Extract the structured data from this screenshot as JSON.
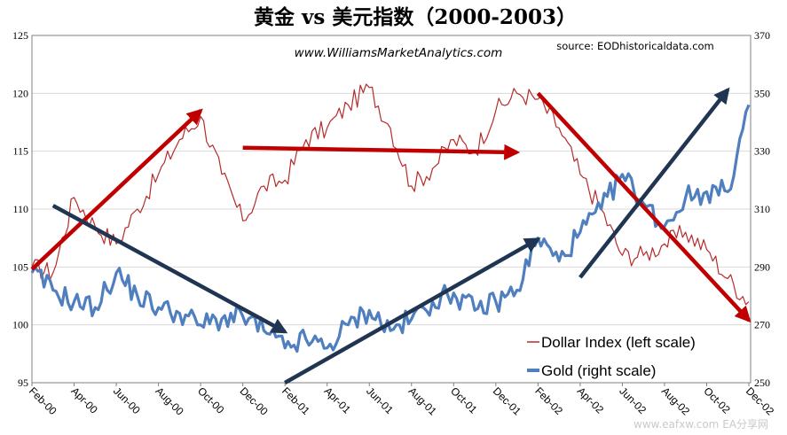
{
  "chart_data": {
    "type": "line",
    "title": "黄金 vs 美元指数（2000-2003）",
    "website": "www.WilliamsMarketAnalytics.com",
    "source": "source: EODhistoricaldata.com",
    "x_ticks": [
      "Feb-00",
      "Apr-00",
      "Jun-00",
      "Aug-00",
      "Oct-00",
      "Dec-00",
      "Feb-01",
      "Apr-01",
      "Jun-01",
      "Aug-01",
      "Oct-01",
      "Dec-01",
      "Feb-02",
      "Apr-02",
      "Jun-02",
      "Aug-02",
      "Oct-02",
      "Dec-02"
    ],
    "left_axis": {
      "min": 95,
      "max": 125,
      "step": 5,
      "ticks": [
        95,
        100,
        105,
        110,
        115,
        120,
        125
      ]
    },
    "right_axis": {
      "min": 250,
      "max": 370,
      "step": 20,
      "ticks": [
        250,
        270,
        290,
        310,
        330,
        350,
        370
      ]
    },
    "grid": "horizontal",
    "legend_position": "bottom-right",
    "series": [
      {
        "name": "Dollar Index (left scale)",
        "axis": "left",
        "color": "#b52b2b",
        "x": [
          "Feb-00",
          "Mar-00",
          "Apr-00",
          "May-00",
          "Jun-00",
          "Jul-00",
          "Aug-00",
          "Sep-00",
          "Oct-00",
          "Nov-00",
          "Dec-00",
          "Jan-01",
          "Feb-01",
          "Mar-01",
          "Apr-01",
          "May-01",
          "Jun-01",
          "Jul-01",
          "Aug-01",
          "Sep-01",
          "Oct-01",
          "Nov-01",
          "Dec-01",
          "Jan-02",
          "Feb-02",
          "Mar-02",
          "Apr-02",
          "May-02",
          "Jun-02",
          "Jul-02",
          "Aug-02",
          "Sep-02",
          "Oct-02",
          "Nov-02",
          "Dec-02"
        ],
        "values": [
          105,
          104.5,
          111,
          108.5,
          107,
          110,
          113,
          116,
          118,
          113,
          109,
          112,
          112.5,
          116,
          117,
          119,
          120.5,
          117,
          112,
          113.5,
          116,
          115,
          118.5,
          120,
          119.5,
          117,
          113,
          110,
          106,
          106,
          107,
          108,
          106.5,
          104,
          102
        ]
      },
      {
        "name": "Gold (right scale)",
        "axis": "right",
        "color": "#4f7fbe",
        "x": [
          "Feb-00",
          "Mar-00",
          "Apr-00",
          "May-00",
          "Jun-00",
          "Jul-00",
          "Aug-00",
          "Sep-00",
          "Oct-00",
          "Nov-00",
          "Dec-00",
          "Jan-01",
          "Feb-01",
          "Mar-01",
          "Apr-01",
          "May-01",
          "Jun-01",
          "Jul-01",
          "Aug-01",
          "Sep-01",
          "Oct-01",
          "Nov-01",
          "Dec-01",
          "Jan-02",
          "Feb-02",
          "Mar-02",
          "Apr-02",
          "May-02",
          "Jun-02",
          "Jul-02",
          "Aug-02",
          "Sep-02",
          "Oct-02",
          "Nov-02",
          "Dec-02"
        ],
        "values": [
          288,
          282,
          278,
          276,
          288,
          280,
          276,
          274,
          270,
          272,
          273,
          268,
          262,
          265,
          262,
          270,
          275,
          268,
          272,
          278,
          281,
          275,
          278,
          282,
          300,
          292,
          302,
          310,
          322,
          312,
          304,
          314,
          316,
          316,
          346
        ]
      }
    ],
    "annotations": [
      {
        "kind": "arrow",
        "color": "#c00000",
        "from": [
          "Feb-00",
          104.8
        ],
        "to": [
          "Oct-00",
          118.5
        ]
      },
      {
        "kind": "arrow",
        "color": "#c00000",
        "from": [
          "Dec-00",
          115.3
        ],
        "to": [
          "Jan-02",
          114.9
        ]
      },
      {
        "kind": "arrow",
        "color": "#c00000",
        "from": [
          "Feb-02",
          120
        ],
        "to": [
          "Dec-02",
          100.4
        ]
      },
      {
        "kind": "arrow",
        "color": "#1f3552",
        "from": [
          "Mar-00",
          110.3
        ],
        "to": [
          "Feb-01",
          99.4
        ]
      },
      {
        "kind": "arrow",
        "color": "#1f3552",
        "from": [
          "Feb-01",
          95
        ],
        "to": [
          "Feb-02",
          107.4
        ]
      },
      {
        "kind": "arrow",
        "color": "#1f3552",
        "from": [
          "Apr-02",
          104.1
        ],
        "to": [
          "Nov-02",
          120.3
        ]
      }
    ],
    "watermark": "www.eafxw.com  EA分享网"
  }
}
